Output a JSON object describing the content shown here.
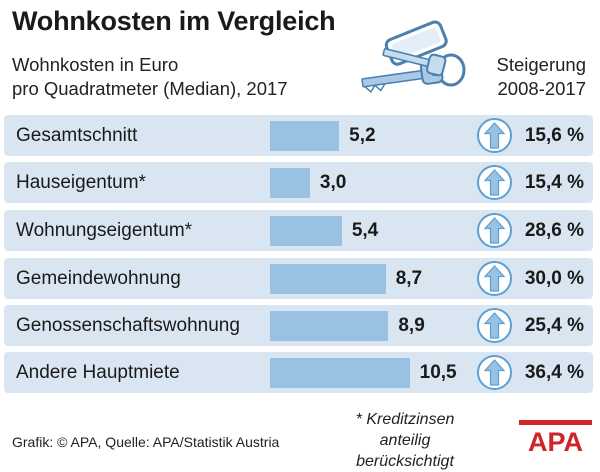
{
  "header": {
    "title": "Wohnkosten im Vergleich",
    "subtitle_line1": "Wohnkosten in Euro",
    "subtitle_line2": "pro Quadratmeter (Median), 2017",
    "right_line1": "Steigerung",
    "right_line2": "2008-2017"
  },
  "chart_data": {
    "type": "bar",
    "title": "Wohnkosten im Vergleich",
    "ylabel": "Wohnkosten in Euro pro Quadratmeter (Median), 2017",
    "categories": [
      "Gesamtschnitt",
      "Hauseigentum*",
      "Wohnungseigentum*",
      "Gemeindewohnung",
      "Genossenschaftswohnung",
      "Andere Hauptmiete"
    ],
    "values": [
      5.2,
      3.0,
      5.4,
      8.7,
      8.9,
      10.5
    ],
    "value_labels": [
      "5,2",
      "3,0",
      "5,4",
      "8,7",
      "8,9",
      "10,5"
    ],
    "increase_label": "Steigerung 2008-2017",
    "increase_pct": [
      15.6,
      15.4,
      28.6,
      30.0,
      25.4,
      36.4
    ],
    "increase_labels": [
      "15,6 %",
      "15,4 %",
      "28,6 %",
      "30,0 %",
      "25,4 %",
      "36,4 %"
    ],
    "ylim": [
      0,
      10.5
    ]
  },
  "footnote_line1": "* Kreditzinsen anteilig",
  "footnote_line2": "berücksichtigt",
  "credit": "Grafik: © APA, Quelle: APA/Statistik Austria",
  "logo_text": "APA",
  "colors": {
    "row_bg": "#d9e6f2",
    "bar": "#99c2e2",
    "arrow_circle": "#ffffff",
    "arrow_ring": "#5d9fd2",
    "arrow_fill": "#99c2e2",
    "logo_red": "#d1232a"
  }
}
